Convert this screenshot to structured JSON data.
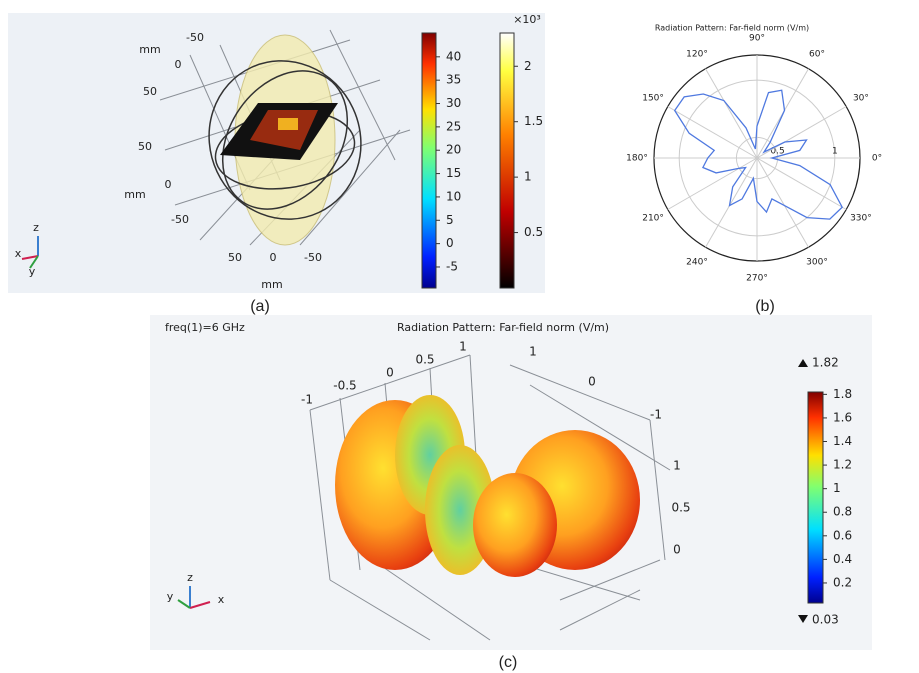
{
  "panel_a": {
    "axis_labels": [
      "mm",
      "-50",
      "0",
      "50",
      "50",
      "0",
      "mm",
      "-50",
      "50",
      "0",
      "-50",
      "mm"
    ],
    "triad": [
      "z",
      "x",
      "y"
    ],
    "colorbar_1": {
      "ticks": [
        40,
        35,
        30,
        25,
        20,
        15,
        10,
        5,
        0,
        -5
      ],
      "lim": [
        -9.5,
        45.1
      ]
    },
    "colorbar_2": {
      "multiplier": "×10³",
      "ticks": [
        2,
        1.5,
        1,
        0.5
      ],
      "lim": [
        0,
        2.3
      ]
    },
    "caption": "(a)"
  },
  "panel_b": {
    "title": "Radiation Pattern: Far-field norm (V/m)",
    "angle_ticks": [
      {
        "value": 0,
        "label": "0°"
      },
      {
        "value": 30,
        "label": "30°"
      },
      {
        "value": 60,
        "label": "60°"
      },
      {
        "value": 90,
        "label": "90°"
      },
      {
        "value": 120,
        "label": "120°"
      },
      {
        "value": 150,
        "label": "150°"
      },
      {
        "value": 180,
        "label": "180°"
      },
      {
        "value": 210,
        "label": "210°"
      },
      {
        "value": 240,
        "label": "240°"
      },
      {
        "value": 270,
        "label": "270°"
      },
      {
        "value": 300,
        "label": "300°"
      },
      {
        "value": 330,
        "label": "330°"
      }
    ],
    "rlim": [
      0.32,
      1.22
    ],
    "rticks": [
      0.5,
      1
    ],
    "color": "#4f79e0",
    "theta": [
      0,
      10,
      20,
      30,
      40,
      50,
      60,
      70,
      80,
      90,
      100,
      110,
      120,
      130,
      140,
      150,
      160,
      170,
      180,
      190,
      200,
      210,
      220,
      230,
      240,
      250,
      260,
      270,
      280,
      290,
      300,
      310,
      320,
      330,
      340,
      350
    ],
    "r": [
      0.45,
      0.7,
      0.78,
      0.6,
      0.4,
      0.5,
      0.8,
      0.95,
      0.9,
      0.6,
      0.4,
      0.6,
      0.9,
      1.05,
      1.15,
      1.15,
      0.95,
      0.7,
      0.75,
      0.8,
      0.7,
      0.5,
      0.45,
      0.65,
      0.8,
      0.7,
      0.5,
      0.7,
      0.8,
      0.7,
      0.8,
      1.0,
      1.15,
      1.18,
      1.0,
      0.7
    ],
    "caption": "(b)"
  },
  "panel_c": {
    "annotation": "freq(1)=6 GHz",
    "title": "Radiation Pattern: Far-field norm (V/m)",
    "axis_labels": [
      "-1",
      "-0.5",
      "0",
      "0.5",
      "1",
      "1",
      "0",
      "-1",
      "1",
      "0.5",
      "0"
    ],
    "triad": [
      "z",
      "y",
      "x"
    ],
    "colorbar": {
      "ticks": [
        1.8,
        1.6,
        1.4,
        1.2,
        1,
        0.8,
        0.6,
        0.4,
        0.2
      ],
      "max": 1.82,
      "min": 0.03
    },
    "caption": "(c)"
  }
}
